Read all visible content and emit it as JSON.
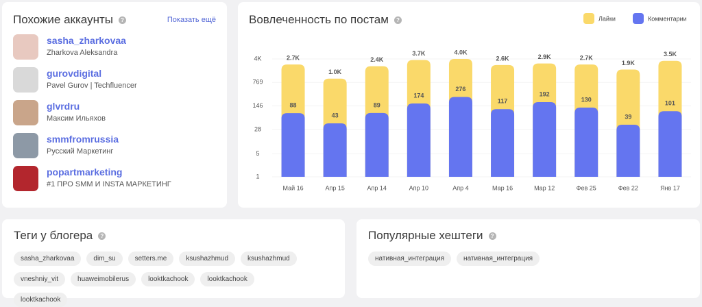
{
  "similar_accounts": {
    "title": "Похожие аккаунты",
    "show_more": "Показать ещё",
    "accounts": [
      {
        "username": "sasha_zharkovaa",
        "name": "Zharkova Aleksandra"
      },
      {
        "username": "gurovdigital",
        "name": "Pavel Gurov | Techfluencer"
      },
      {
        "username": "glvrdru",
        "name": "Максим Ильяхов"
      },
      {
        "username": "smmfromrussia",
        "name": "Русский Маркетинг"
      },
      {
        "username": "popartmarketing",
        "name": "#1 ПРО SMM И INSTA МАРКЕТИНГ"
      }
    ]
  },
  "chart_data": {
    "type": "bar",
    "title": "Вовлеченность по постам",
    "categories": [
      "Май 16",
      "Апр 15",
      "Апр 14",
      "Апр 10",
      "Апр 4",
      "Мар 16",
      "Мар 12",
      "Фев 25",
      "Фев 22",
      "Янв 17"
    ],
    "series": [
      {
        "name": "Лайки",
        "color": "#fad96a",
        "values": [
          2700,
          1000,
          2400,
          3700,
          4000,
          2600,
          2900,
          2700,
          1900,
          3500
        ],
        "value_labels": [
          "2.7K",
          "1.0K",
          "2.4K",
          "3.7K",
          "4.0K",
          "2.6K",
          "2.9K",
          "2.7K",
          "1.9K",
          "3.5K"
        ]
      },
      {
        "name": "Комментарии",
        "color": "#6475f0",
        "values": [
          88,
          43,
          89,
          174,
          276,
          117,
          192,
          130,
          39,
          101
        ]
      }
    ],
    "ylim": [
      1,
      4000
    ],
    "yticks": [
      1,
      5,
      28,
      146,
      769,
      {
        "value": 4000,
        "label": "4K"
      }
    ],
    "log_scale": true,
    "grid": true,
    "legend": "top-right"
  },
  "blogger_tags": {
    "title": "Теги у блогера",
    "tags": [
      "sasha_zharkovaa",
      "dim_su",
      "setters.me",
      "ksushazhmud",
      "ksushazhmud",
      "vneshniy_vit",
      "huaweimobilerus",
      "looktkachook",
      "looktkachook",
      "looktkachook"
    ]
  },
  "popular_hashtags": {
    "title": "Популярные хештеги",
    "tags": [
      "нативная_интеграция",
      "нативная_интеграция"
    ]
  }
}
